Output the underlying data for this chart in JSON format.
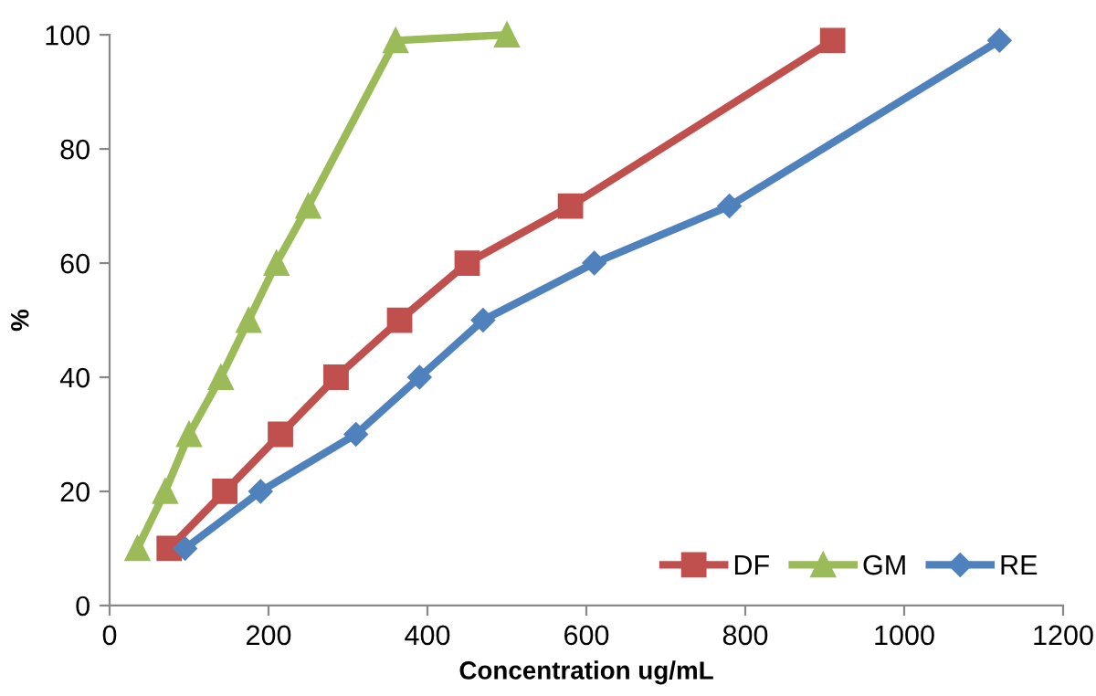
{
  "chart_data": {
    "type": "line",
    "xlabel": "Concentration ug/mL",
    "ylabel": "%",
    "xlim": [
      0,
      1200
    ],
    "xticks": [
      0,
      200,
      400,
      600,
      800,
      1000,
      1200
    ],
    "ylim": [
      0,
      100
    ],
    "yticks": [
      0,
      20,
      40,
      60,
      80,
      100
    ],
    "grid": false,
    "legend": "bottom right",
    "series": [
      {
        "name": "DF",
        "color": "#c0504d",
        "marker": "square",
        "x": [
          75,
          145,
          215,
          285,
          365,
          450,
          580,
          910
        ],
        "values": [
          10,
          20,
          30,
          40,
          50,
          60,
          70,
          99
        ]
      },
      {
        "name": "GM",
        "color": "#9bbb59",
        "marker": "triangle",
        "x": [
          35,
          70,
          100,
          140,
          175,
          210,
          250,
          360,
          500
        ],
        "values": [
          10,
          20,
          30,
          40,
          50,
          60,
          70,
          99,
          100
        ]
      },
      {
        "name": "RE",
        "color": "#4f81bd",
        "marker": "diamond",
        "x": [
          95,
          190,
          310,
          390,
          470,
          610,
          780,
          1120
        ],
        "values": [
          10,
          20,
          30,
          40,
          50,
          60,
          70,
          99
        ]
      }
    ]
  }
}
